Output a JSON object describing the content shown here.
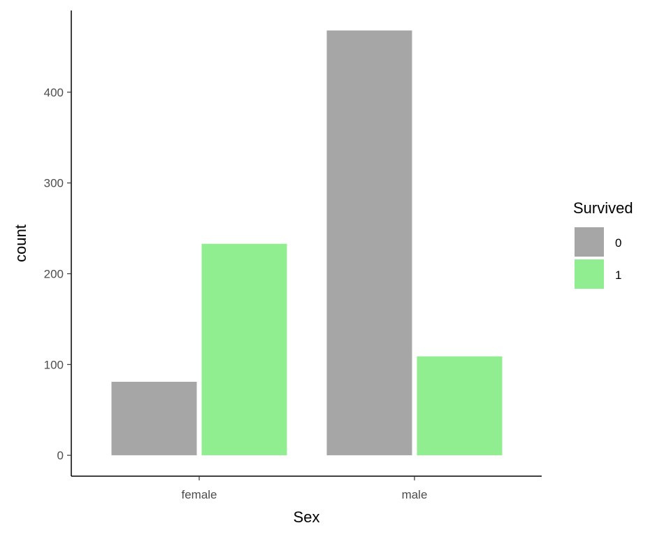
{
  "chart_data": {
    "type": "bar",
    "xlabel": "Sex",
    "ylabel": "count",
    "categories": [
      "female",
      "male"
    ],
    "series": [
      {
        "name": "0",
        "values": [
          81,
          468
        ],
        "color": "#a6a6a6"
      },
      {
        "name": "1",
        "values": [
          233,
          109
        ],
        "color": "#90ee90"
      }
    ],
    "ylim": [
      -23,
      490
    ],
    "yticks": [
      0,
      100,
      200,
      300,
      400
    ],
    "ytick_labels": [
      "0",
      "100",
      "200",
      "300",
      "400"
    ],
    "grid": false,
    "legend": {
      "title": "Survived",
      "position": "right"
    }
  }
}
